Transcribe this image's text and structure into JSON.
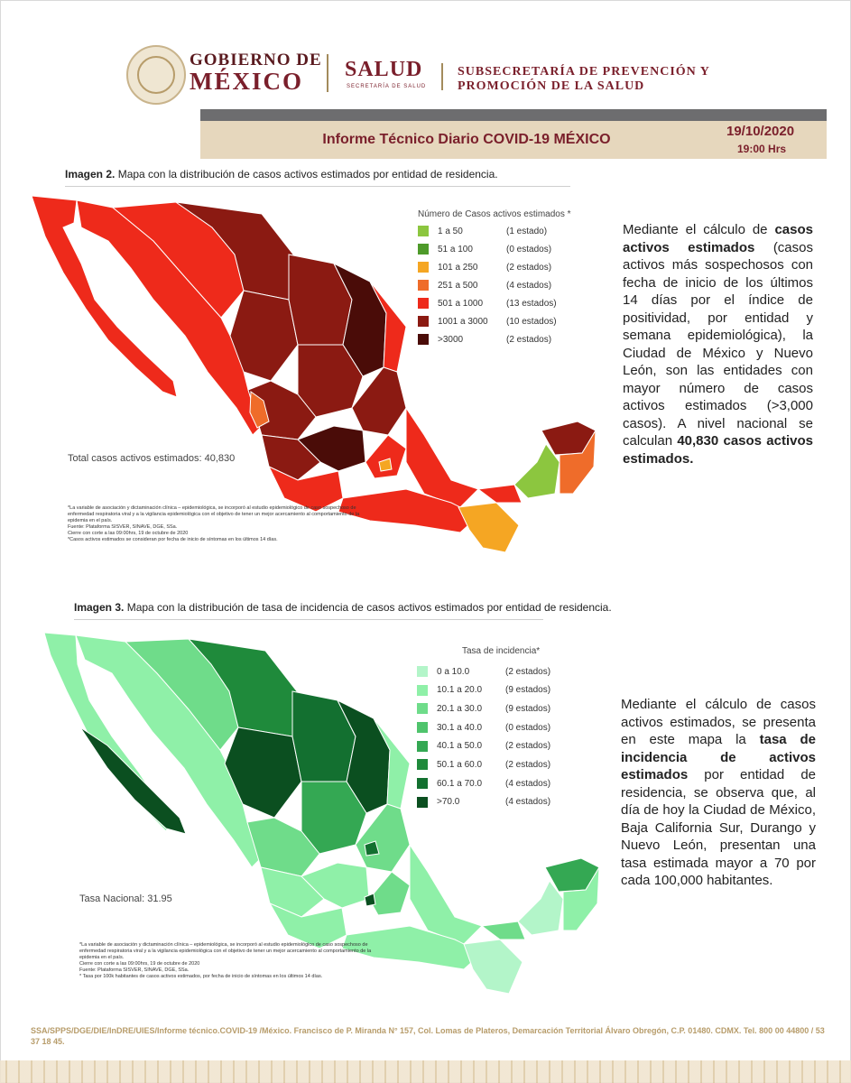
{
  "header": {
    "gobierno_line1": "GOBIERNO DE",
    "gobierno_line2": "MÉXICO",
    "salud": "SALUD",
    "salud_sub": "SECRETARÍA DE SALUD",
    "subsecretaria": "SUBSECRETARÍA DE PREVENCIÓN Y PROMOCIÓN DE LA SALUD"
  },
  "report": {
    "title": "Informe Técnico Diario COVID-19 MÉXICO",
    "date": "19/10/2020",
    "time": "19:00 Hrs"
  },
  "map1": {
    "caption_bold": "Imagen 2.",
    "caption": " Mapa con la distribución de casos activos estimados por entidad de residencia.",
    "legend_title": "Número de Casos activos estimados *",
    "legend": [
      {
        "range": "1 a 50",
        "count": "(1 estado)",
        "color": "#8cc63f"
      },
      {
        "range": "51 a 100",
        "count": "(0 estados)",
        "color": "#4e9a2a"
      },
      {
        "range": "101 a 250",
        "count": "(2 estados)",
        "color": "#f5a623"
      },
      {
        "range": "251 a 500",
        "count": "(4 estados)",
        "color": "#ef6c2a"
      },
      {
        "range": "501 a 1000",
        "count": "(13 estados)",
        "color": "#ee2a1b"
      },
      {
        "range": "1001 a 3000",
        "count": "(10 estados)",
        "color": "#8b1a12"
      },
      {
        "range": ">3000",
        "count": "(2 estados)",
        "color": "#4a0c08"
      }
    ],
    "total_label": "Total casos activos estimados: 40,830",
    "notes": [
      "*La variable de asociación y dictaminación clínica – epidemiológica, se incorporó al estudio epidemiológico de caso sospechoso de enfermedad respiratoria viral y a la vigilancia epidemiológica con el objetivo de tener un mejor acercamiento al comportamiento de la epidemia en el país.",
      "Fuente: Plataforma SISVER, SINAVE, DGE, SSa.",
      "Cierre con corte a las 09:00hrs, 19 de octubre de 2020",
      "*Casos activos estimados se consideran por fecha de inicio de síntomas en los últimos 14 días."
    ],
    "paragraph": {
      "p1": "Mediante el cálculo de ",
      "b1": "casos activos estimados",
      "p2": " (casos activos más sospechosos con fecha de inicio de los últimos 14 días por el índice de positividad, por entidad y semana epidemiológica), la Ciudad de México y Nuevo León, son las entidades con mayor número de casos activos estimados (>3,000 casos). A nivel nacional se calculan ",
      "b2": "40,830 casos activos estimados."
    }
  },
  "map2": {
    "caption_bold": "Imagen 3.",
    "caption": " Mapa con la distribución de tasa de incidencia de casos activos estimados por entidad de residencia.",
    "legend_title": "Tasa de incidencia*",
    "legend": [
      {
        "range": "0 a 10.0",
        "count": "(2 estados)",
        "color": "#b3f5c9"
      },
      {
        "range": "10.1 a 20.0",
        "count": "(9 estados)",
        "color": "#8ff0a8"
      },
      {
        "range": "20.1 a 30.0",
        "count": "(9 estados)",
        "color": "#6fdc8a"
      },
      {
        "range": "30.1 a 40.0",
        "count": "(0 estados)",
        "color": "#4fc46c"
      },
      {
        "range": "40.1 a 50.0",
        "count": "(2 estados)",
        "color": "#34a853"
      },
      {
        "range": "50.1 a 60.0",
        "count": "(2 estados)",
        "color": "#1f8a3b"
      },
      {
        "range": "60.1 a 70.0",
        "count": "(4 estados)",
        "color": "#137030"
      },
      {
        "range": ">70.0",
        "count": "(4 estados)",
        "color": "#0b4f20"
      }
    ],
    "total_label": "Tasa Nacional: 31.95",
    "notes": [
      "*La variable de asociación y dictaminación clínica – epidemiológica, se incorporó al estudio epidemiológico de caso sospechoso de enfermedad respiratoria viral y a la vigilancia epidemiológica con el objetivo de tener un mejor acercamiento al comportamiento de la epidemia en el país.",
      "Cierre con corte a las 09:00hrs, 19 de octubre de 2020",
      "Fuente: Plataforma SISVER, SINAVE, DGE, SSa.",
      "* Tasa por 100k habitantes de casos activos estimados, por fecha de inicio de síntomas en los últimos 14 días."
    ],
    "paragraph": {
      "p1": "Mediante el cálculo de casos activos estimados, se presenta en este mapa la ",
      "b1": "tasa de incidencia de activos estimados",
      "p2": " por entidad de residencia, se observa que, al día de hoy la Ciudad de México, Baja California Sur, Durango y Nuevo León, presentan una tasa estimada mayor a 70 por cada 100,000 habitantes."
    }
  },
  "footer": "SSA/SPPS/DGE/DIE/InDRE/UIES/Informe técnico.COVID-19 /México. Francisco de P. Miranda N° 157, Col. Lomas de Plateros, Demarcación Territorial Álvaro Obregón, C.P. 01480. CDMX. Tel. 800 00 44800 / 53 37 18 45."
}
